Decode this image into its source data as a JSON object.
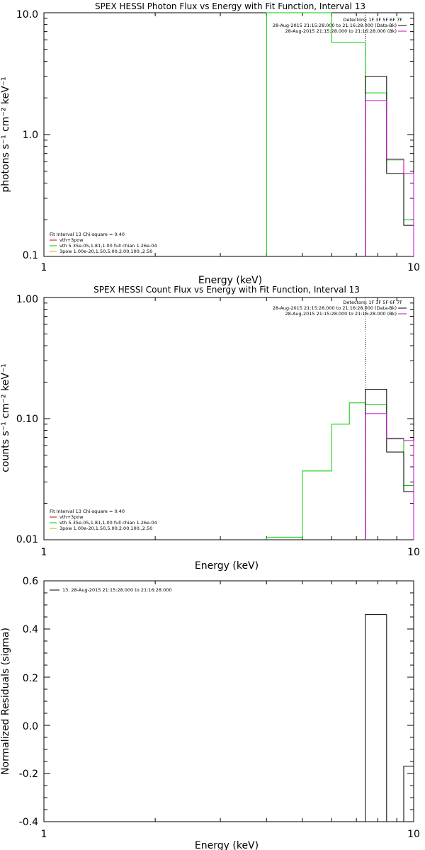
{
  "panels": [
    {
      "id": "photon",
      "title": "SPEX HESSI Photon Flux vs Energy with Fit Function, Interval 13",
      "xlabel": "Energy (keV)",
      "ylabel": "photons s⁻¹ cm⁻² keV⁻¹",
      "x_scale": "log",
      "y_scale": "log",
      "xlim": [
        1,
        10
      ],
      "ylim": [
        0.1,
        10
      ],
      "x_tick_labels": [
        "1",
        "10"
      ],
      "y_tick_labels": [
        "0.1",
        "1.0",
        "10.0"
      ],
      "top_right_legend": [
        {
          "text": "Detectors: 1F 3F 5F 6F 7F",
          "color": ""
        },
        {
          "text": "28-Aug-2015 21:15:28.000 to 21:16:28.000 (Data-Bk)",
          "color": "#000000"
        },
        {
          "text": "28-Aug-2015 21:15:28.000 to 21:16:28.000 (Bk)",
          "color": "#cc00cc"
        }
      ],
      "bottom_left_legend": [
        {
          "text": "Fit Interval 13   Chi-square = 0.40",
          "color": ""
        },
        {
          "text": "vth+3pow",
          "color": "#cc0000"
        },
        {
          "text": "vth 5.35e-05,1.81,1.00  full chian 1.26e-04",
          "color": "#00cc00"
        },
        {
          "text": "3pow 1.00e-20,1.50,5.00,2.00,100.,2.50",
          "color": "#ccaa00"
        }
      ]
    },
    {
      "id": "count",
      "title": "SPEX HESSI Count Flux vs Energy with Fit Function, Interval 13",
      "xlabel": "Energy (keV)",
      "ylabel": "counts s⁻¹ cm⁻² keV⁻¹",
      "x_scale": "log",
      "y_scale": "log",
      "xlim": [
        1,
        10
      ],
      "ylim": [
        0.01,
        1
      ],
      "x_tick_labels": [
        "1",
        "10"
      ],
      "y_tick_labels": [
        "0.01",
        "0.10",
        "1.00"
      ],
      "top_right_legend": [
        {
          "text": "Detectors: 1F 3F 5F 6F 7F",
          "color": ""
        },
        {
          "text": "28-Aug-2015 21:15:28.000 to 21:16:28.000 (Data-Bk)",
          "color": "#000000"
        },
        {
          "text": "28-Aug-2015 21:15:28.000 to 21:16:28.000 (Bk)",
          "color": "#cc00cc"
        }
      ],
      "bottom_left_legend": [
        {
          "text": "Fit Interval 13   Chi-square = 0.40",
          "color": ""
        },
        {
          "text": "vth+3pow",
          "color": "#cc0000"
        },
        {
          "text": "vth 5.35e-05,1.81,1.00  full chian 1.26e-04",
          "color": "#00cc00"
        },
        {
          "text": "3pow 1.00e-20,1.50,5.00,2.00,100.,2.50",
          "color": "#ccaa00"
        }
      ]
    },
    {
      "id": "resid",
      "title": "",
      "xlabel": "Energy (keV)",
      "ylabel": "Normalized Residuals (sigma)",
      "x_scale": "log",
      "y_scale": "linear",
      "xlim": [
        1,
        10
      ],
      "ylim": [
        -0.4,
        0.6
      ],
      "x_tick_labels": [
        "1",
        "10"
      ],
      "y_tick_labels": [
        "-0.4",
        "-0.2",
        "0.0",
        "0.2",
        "0.4",
        "0.6"
      ],
      "top_left_legend": [
        {
          "text": "13. 28-Aug-2015 21:15:28.000 to 21:16:28.000",
          "color": "#000000"
        }
      ]
    }
  ],
  "chart_data": [
    {
      "type": "line",
      "title": "SPEX HESSI Photon Flux vs Energy with Fit Function, Interval 13",
      "xlabel": "Energy (keV)",
      "ylabel": "photons s⁻¹ cm⁻² keV⁻¹",
      "x_log": true,
      "y_log": true,
      "xlim": [
        1,
        10
      ],
      "ylim": [
        0.1,
        10
      ],
      "fit_interval_marker_keV": 7.4,
      "series": [
        {
          "name": "vth 5.35e-05,1.81,1.00  full chian 1.26e-04",
          "color": "#00cc00",
          "style": "step",
          "bins": [
            [
              4,
              6,
              12
            ],
            [
              6,
              7.4,
              5.7
            ],
            [
              7.4,
              8.45,
              2.2
            ],
            [
              8.45,
              9.4,
              0.62
            ],
            [
              9.4,
              10,
              0.2
            ]
          ]
        },
        {
          "name": "28-Aug-2015 21:15:28.000 to 21:16:28.000 (Data-Bk)",
          "color": "#000000",
          "style": "step",
          "bins": [
            [
              7.4,
              8.45,
              3.0
            ],
            [
              8.45,
              9.4,
              0.48
            ],
            [
              9.4,
              10,
              0.18
            ]
          ]
        },
        {
          "name": "28-Aug-2015 21:15:28.000 to 21:16:28.000 (Bk)",
          "color": "#cc00cc",
          "style": "step",
          "bins": [
            [
              7.4,
              8.45,
              1.9
            ],
            [
              8.45,
              9.4,
              0.63
            ],
            [
              9.4,
              10,
              0.48
            ]
          ]
        }
      ]
    },
    {
      "type": "line",
      "title": "SPEX HESSI Count Flux vs Energy with Fit Function, Interval 13",
      "xlabel": "Energy (keV)",
      "ylabel": "counts s⁻¹ cm⁻² keV⁻¹",
      "x_log": true,
      "y_log": true,
      "xlim": [
        1,
        10
      ],
      "ylim": [
        0.01,
        1
      ],
      "fit_interval_marker_keV": 7.4,
      "series": [
        {
          "name": "vth 5.35e-05,1.81,1.00  full chian 1.26e-04",
          "color": "#00cc00",
          "style": "step",
          "bins": [
            [
              4,
              5,
              0.0105
            ],
            [
              5,
              6,
              0.037
            ],
            [
              6,
              6.7,
              0.09
            ],
            [
              6.7,
              7.4,
              0.135
            ],
            [
              7.4,
              8.45,
              0.13
            ],
            [
              8.45,
              9.4,
              0.069
            ],
            [
              9.4,
              10,
              0.028
            ]
          ]
        },
        {
          "name": "28-Aug-2015 21:15:28.000 to 21:16:28.000 (Data-Bk)",
          "color": "#000000",
          "style": "step",
          "bins": [
            [
              7.4,
              8.45,
              0.175
            ],
            [
              8.45,
              9.4,
              0.053
            ],
            [
              9.4,
              10,
              0.025
            ]
          ]
        },
        {
          "name": "28-Aug-2015 21:15:28.000 to 21:16:28.000 (Bk)",
          "color": "#cc00cc",
          "style": "step",
          "bins": [
            [
              7.4,
              8.45,
              0.11
            ],
            [
              8.45,
              9.4,
              0.068
            ],
            [
              9.4,
              10,
              0.066
            ]
          ]
        }
      ]
    },
    {
      "type": "bar",
      "title": "",
      "xlabel": "Energy (keV)",
      "ylabel": "Normalized Residuals (sigma)",
      "x_log": true,
      "y_log": false,
      "xlim": [
        1,
        10
      ],
      "ylim": [
        -0.4,
        0.6
      ],
      "series": [
        {
          "name": "13. 28-Aug-2015 21:15:28.000 to 21:16:28.000",
          "color": "#000000",
          "style": "step",
          "bins": [
            [
              7.4,
              8.45,
              0.46
            ],
            [
              8.45,
              9.4,
              -0.4
            ],
            [
              9.4,
              10,
              -0.17
            ]
          ]
        }
      ]
    }
  ]
}
